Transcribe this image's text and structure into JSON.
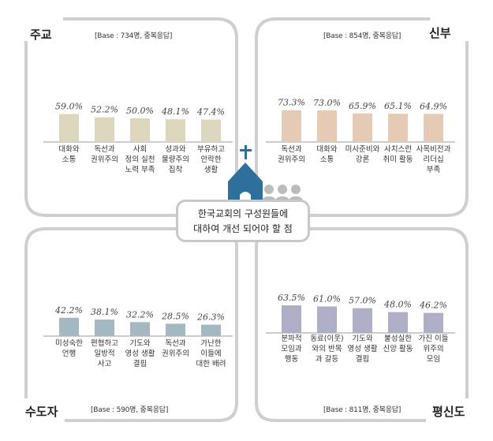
{
  "center": {
    "line1": "한국교회의 구성원들에",
    "line2": "대하여 개선 되어야 할 점"
  },
  "chart_data": [
    {
      "type": "bar",
      "title": "주교",
      "base": "[Base : 734명, 중복응답]",
      "color": "#dcd6bd",
      "ylim": [
        0,
        100
      ],
      "categories": [
        [
          "대화와",
          "소통"
        ],
        [
          "독선과",
          "권위주의"
        ],
        [
          "사회",
          "정의 실천",
          "노력 부족"
        ],
        [
          "성과와",
          "물량주의",
          "집착"
        ],
        [
          "부유하고",
          "안락한",
          "생활"
        ]
      ],
      "values": [
        59.0,
        52.2,
        50.0,
        48.1,
        47.4
      ],
      "value_labels": [
        "59.0%",
        "52.2%",
        "50.0%",
        "48.1%",
        "47.4%"
      ]
    },
    {
      "type": "bar",
      "title": "신부",
      "base": "[Base : 854명, 중복응답]",
      "color": "#e5cbb5",
      "ylim": [
        0,
        100
      ],
      "categories": [
        [
          "독선과",
          "권위주의"
        ],
        [
          "대화와",
          "소통"
        ],
        [
          "미사준비와",
          "강론"
        ],
        [
          "사치스런",
          "취미 활동"
        ],
        [
          "사목비전과",
          "리더십",
          "부족"
        ]
      ],
      "values": [
        73.3,
        73.0,
        65.9,
        65.1,
        64.9
      ],
      "value_labels": [
        "73.3%",
        "73.0%",
        "65.9%",
        "65.1%",
        "64.9%"
      ]
    },
    {
      "type": "bar",
      "title": "수도자",
      "base": "[Base : 590명, 중복응답]",
      "color": "#a3b8c1",
      "ylim": [
        0,
        100
      ],
      "categories": [
        [
          "미성숙한",
          "언행"
        ],
        [
          "편협하고",
          "일방적",
          "사고"
        ],
        [
          "기도와",
          "영성 생활",
          "결핍"
        ],
        [
          "독선과",
          "권위주의"
        ],
        [
          "가난한",
          "이들에",
          "대한 배려"
        ]
      ],
      "values": [
        42.2,
        38.1,
        32.2,
        28.5,
        26.3
      ],
      "value_labels": [
        "42.2%",
        "38.1%",
        "32.2%",
        "28.5%",
        "26.3%"
      ]
    },
    {
      "type": "bar",
      "title": "평신도",
      "base": "[Base : 811명, 중복응답]",
      "color": "#aeaec6",
      "ylim": [
        0,
        100
      ],
      "categories": [
        [
          "분파적",
          "모임과",
          "행동"
        ],
        [
          "동료(이웃)",
          "와의 반목",
          "과 갈등"
        ],
        [
          "기도와",
          "영성 생활",
          "결핍"
        ],
        [
          "불성실한",
          "신앙 활동"
        ],
        [
          "가진 이들",
          "위주의",
          "모임"
        ]
      ],
      "values": [
        63.5,
        61.0,
        57.0,
        48.0,
        46.2
      ],
      "value_labels": [
        "63.5%",
        "61.0%",
        "57.0%",
        "48.0%",
        "46.2%"
      ]
    }
  ]
}
